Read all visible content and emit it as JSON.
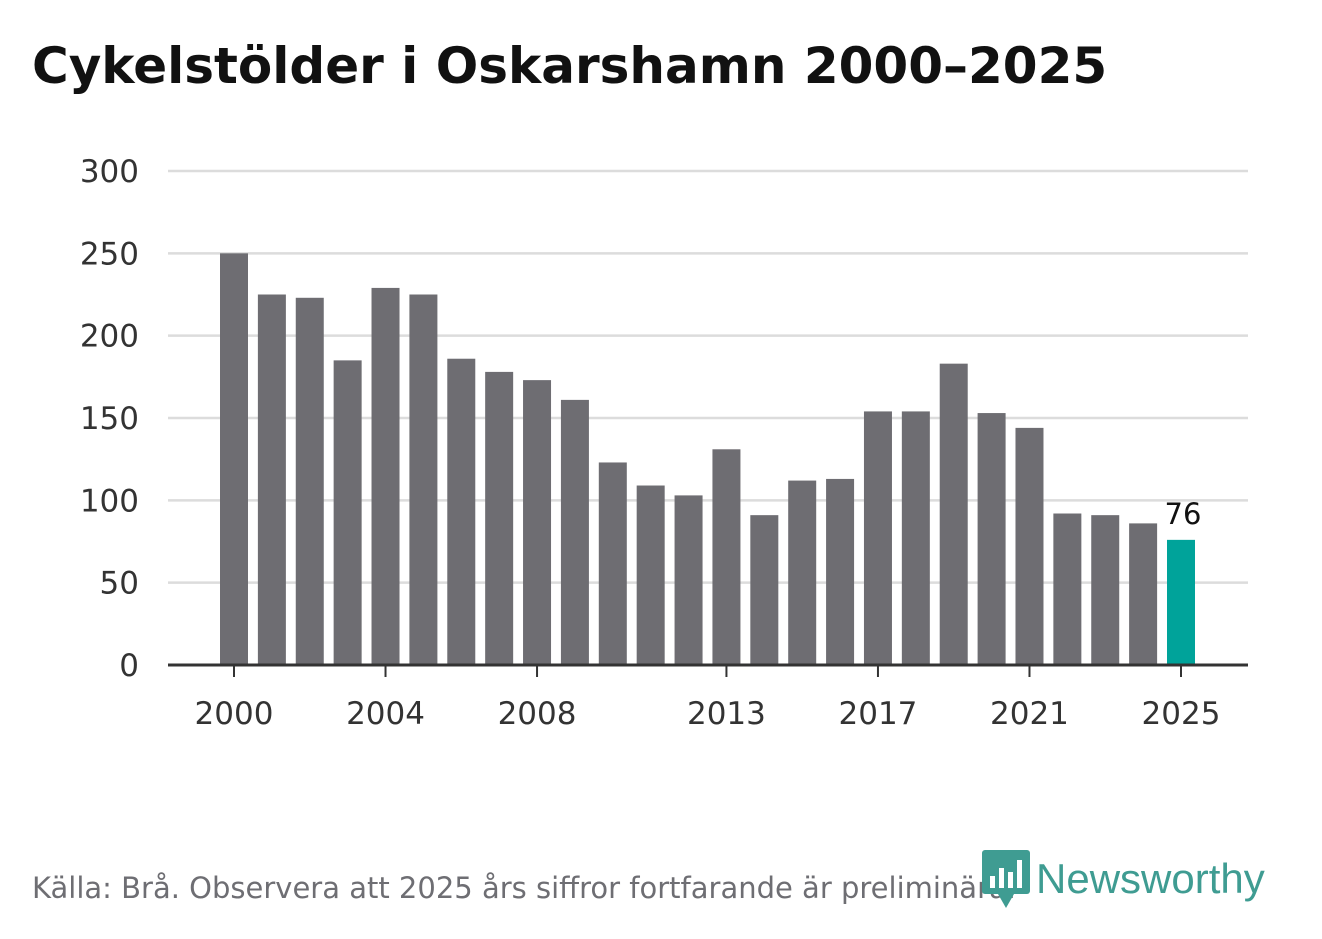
{
  "chart_data": {
    "type": "bar",
    "title": "Cykelstölder i Oskarshamn 2000–2025",
    "xlabel": "",
    "ylabel": "",
    "categories": [
      "2000",
      "2001",
      "2002",
      "2003",
      "2004",
      "2005",
      "2006",
      "2007",
      "2008",
      "2009",
      "2010",
      "2011",
      "2012",
      "2013",
      "2014",
      "2015",
      "2016",
      "2017",
      "2018",
      "2019",
      "2020",
      "2021",
      "2022",
      "2023",
      "2024",
      "2025"
    ],
    "x_tick_labels": [
      "2000",
      "2004",
      "2008",
      "2013",
      "2017",
      "2021",
      "2025"
    ],
    "values": [
      250,
      225,
      223,
      185,
      229,
      225,
      186,
      178,
      173,
      161,
      123,
      109,
      103,
      131,
      91,
      112,
      113,
      154,
      154,
      183,
      153,
      144,
      92,
      91,
      86,
      76
    ],
    "ylim": [
      0,
      300
    ],
    "yticks": [
      0,
      50,
      100,
      150,
      200,
      250,
      300
    ],
    "grid": true,
    "bar_color": "#6e6d72",
    "highlight_color": "#00a39a",
    "highlight_index": 25,
    "data_labels": [
      {
        "category": "2025",
        "text": "76"
      }
    ]
  },
  "footer": {
    "source": "Källa: Brå. Observera att 2025 års siffror fortfarande är preliminära.",
    "logo_text": "Newsworthy",
    "logo_color": "#3f9c92",
    "logo_icon": "bar-chart-bubble-icon"
  }
}
